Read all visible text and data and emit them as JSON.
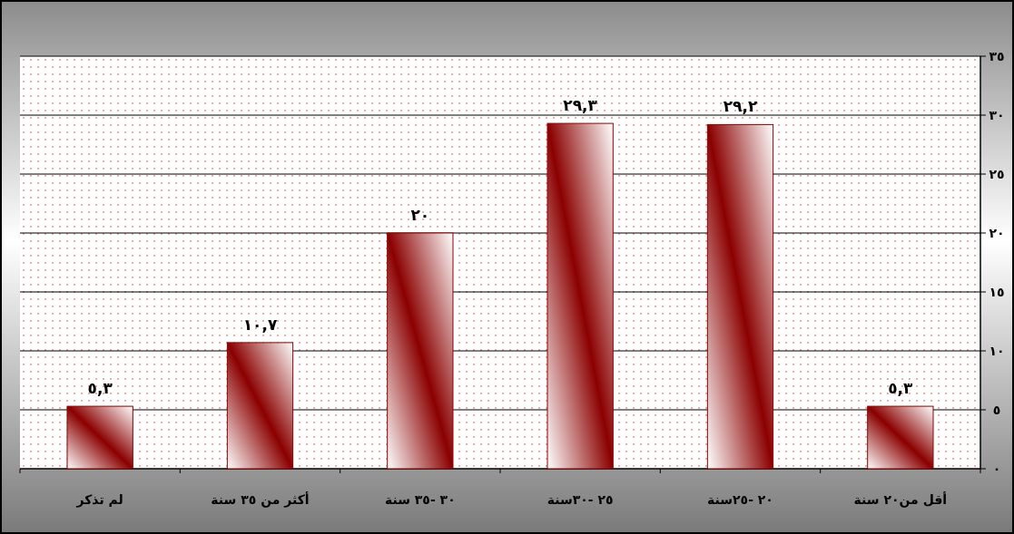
{
  "chart_data": {
    "type": "bar",
    "categories": [
      "لم تذكر",
      "أكثر من ٣٥ سنة",
      "٣٠ -٣٥ سنة",
      "٢٥ -٣٠سنة",
      "٢٠ -٢٥سنة",
      "أقل من٢٠ سنة"
    ],
    "values": [
      5.3,
      10.7,
      20,
      29.3,
      29.2,
      5.3
    ],
    "value_labels": [
      "٥,٣",
      "١٠,٧",
      "٢٠",
      "٢٩,٣",
      "٢٩,٢",
      "٥,٣"
    ],
    "color": "#8b0000",
    "ylim": [
      0,
      35
    ],
    "yticks": [
      {
        "value": 0,
        "label": "٠"
      },
      {
        "value": 5,
        "label": "٥"
      },
      {
        "value": 10,
        "label": "١٠"
      },
      {
        "value": 15,
        "label": "١٥"
      },
      {
        "value": 20,
        "label": "٢٠"
      },
      {
        "value": 25,
        "label": "٢٥"
      },
      {
        "value": 30,
        "label": "٣٠"
      },
      {
        "value": 35,
        "label": "٣٥"
      }
    ],
    "grid": "y"
  }
}
